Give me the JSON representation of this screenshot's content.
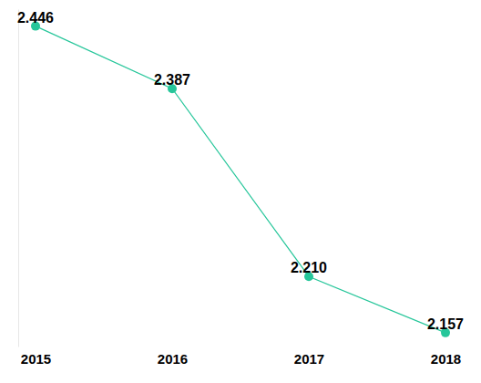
{
  "chart_data": {
    "type": "line",
    "categories": [
      "2015",
      "2016",
      "2017",
      "2018"
    ],
    "values": [
      2.446,
      2.387,
      2.21,
      2.157
    ],
    "value_labels": [
      "2.446",
      "2.387",
      "2.210",
      "2.157"
    ],
    "color": "#26c69a",
    "marker": "circle",
    "ylim": [
      2.144,
      2.462
    ],
    "data_labels": true,
    "tick_labels": "x",
    "grid": false
  }
}
